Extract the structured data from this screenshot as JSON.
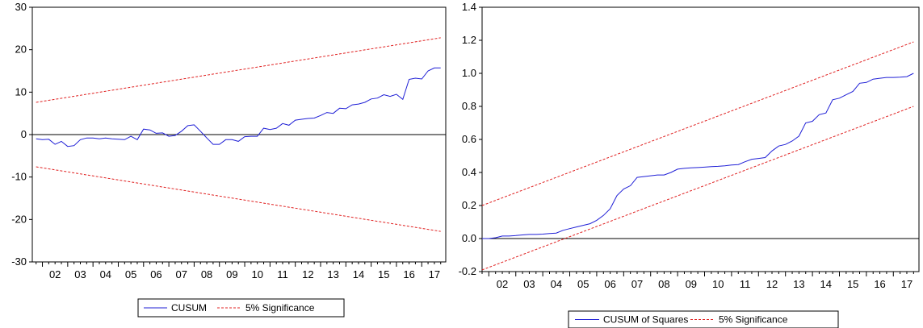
{
  "colors": {
    "series": "#1f1fd6",
    "bounds": "#e02020",
    "zero_line": "#000000",
    "background": "#ffffff"
  },
  "chart_data": [
    {
      "type": "line",
      "title": "",
      "xlabel": "",
      "ylabel": "",
      "ylim": [
        -30,
        30
      ],
      "yticks": [
        "30",
        "20",
        "10",
        "0",
        "-10",
        "-20",
        "-30"
      ],
      "xtick_labels": [
        "02",
        "03",
        "04",
        "05",
        "06",
        "07",
        "08",
        "09",
        "10",
        "11",
        "12",
        "13",
        "14",
        "15",
        "16",
        "17"
      ],
      "x_range": [
        2001.6,
        2017.95
      ],
      "grid": false,
      "legend_position": "bottom",
      "legend": [
        "CUSUM",
        "5% Significance"
      ],
      "series": [
        {
          "name": "CUSUM",
          "style": "solid",
          "x": [
            2001.75,
            2002.0,
            2002.25,
            2002.5,
            2002.75,
            2003.0,
            2003.25,
            2003.5,
            2003.75,
            2004.0,
            2004.25,
            2004.5,
            2004.75,
            2005.0,
            2005.25,
            2005.5,
            2005.75,
            2006.0,
            2006.25,
            2006.5,
            2006.75,
            2007.0,
            2007.25,
            2007.5,
            2007.75,
            2008.0,
            2008.25,
            2008.5,
            2008.75,
            2009.0,
            2009.25,
            2009.5,
            2009.75,
            2010.0,
            2010.25,
            2010.5,
            2010.75,
            2011.0,
            2011.25,
            2011.5,
            2011.75,
            2012.0,
            2012.25,
            2012.5,
            2012.75,
            2013.0,
            2013.25,
            2013.5,
            2013.75,
            2014.0,
            2014.25,
            2014.5,
            2014.75,
            2015.0,
            2015.25,
            2015.5,
            2015.75,
            2016.0,
            2016.25,
            2016.5,
            2016.75,
            2017.0,
            2017.25,
            2017.5,
            2017.75
          ],
          "y": [
            -1.0,
            -1.2,
            -1.1,
            -2.3,
            -1.6,
            -2.8,
            -2.6,
            -1.2,
            -0.8,
            -0.8,
            -1.0,
            -0.8,
            -1.0,
            -1.1,
            -1.2,
            -0.4,
            -1.2,
            1.3,
            1.1,
            0.3,
            0.4,
            -0.4,
            -0.2,
            0.8,
            2.1,
            2.3,
            0.8,
            -0.8,
            -2.3,
            -2.3,
            -1.2,
            -1.2,
            -1.6,
            -0.5,
            -0.4,
            -0.4,
            1.5,
            1.2,
            1.5,
            2.6,
            2.2,
            3.4,
            3.6,
            3.8,
            3.9,
            4.5,
            5.2,
            5.0,
            6.2,
            6.1,
            7.0,
            7.2,
            7.6,
            8.4,
            8.6,
            9.4,
            9.0,
            9.5,
            8.3,
            13.0,
            13.3,
            13.1,
            15.0,
            15.7,
            15.7
          ]
        },
        {
          "name": "5% Significance",
          "style": "dashed",
          "x": [
            2001.75,
            2017.75
          ],
          "y": [
            7.6,
            22.8
          ]
        },
        {
          "name": "5% Significance",
          "style": "dashed",
          "x": [
            2001.75,
            2017.75
          ],
          "y": [
            -7.6,
            -22.8
          ]
        }
      ]
    },
    {
      "type": "line",
      "title": "",
      "xlabel": "",
      "ylabel": "",
      "ylim": [
        -0.2,
        1.4
      ],
      "yticks": [
        "1.4",
        "1.2",
        "1.0",
        "0.8",
        "0.6",
        "0.4",
        "0.2",
        "0.0",
        "-0.2"
      ],
      "xtick_labels": [
        "02",
        "03",
        "04",
        "05",
        "06",
        "07",
        "08",
        "09",
        "10",
        "11",
        "12",
        "13",
        "14",
        "15",
        "16",
        "17"
      ],
      "x_range": [
        2001.75,
        2017.95
      ],
      "grid": false,
      "legend_position": "bottom",
      "legend": [
        "CUSUM of Squares",
        "5% Significance"
      ],
      "series": [
        {
          "name": "CUSUM of Squares",
          "style": "solid",
          "x": [
            2001.75,
            2002.0,
            2002.25,
            2002.5,
            2002.75,
            2003.0,
            2003.25,
            2003.5,
            2003.75,
            2004.0,
            2004.25,
            2004.5,
            2004.75,
            2005.0,
            2005.25,
            2005.5,
            2005.75,
            2006.0,
            2006.25,
            2006.5,
            2006.75,
            2007.0,
            2007.25,
            2007.5,
            2007.75,
            2008.0,
            2008.25,
            2008.5,
            2008.75,
            2009.0,
            2009.25,
            2009.5,
            2009.75,
            2010.0,
            2010.25,
            2010.5,
            2010.75,
            2011.0,
            2011.25,
            2011.5,
            2011.75,
            2012.0,
            2012.25,
            2012.5,
            2012.75,
            2013.0,
            2013.25,
            2013.5,
            2013.75,
            2014.0,
            2014.25,
            2014.5,
            2014.75,
            2015.0,
            2015.25,
            2015.5,
            2015.75,
            2016.0,
            2016.25,
            2016.5,
            2016.75,
            2017.0,
            2017.25,
            2017.5,
            2017.75
          ],
          "y": [
            0.0,
            0.0,
            0.005,
            0.015,
            0.015,
            0.018,
            0.022,
            0.025,
            0.025,
            0.027,
            0.03,
            0.033,
            0.05,
            0.06,
            0.07,
            0.08,
            0.09,
            0.11,
            0.14,
            0.18,
            0.26,
            0.3,
            0.32,
            0.37,
            0.375,
            0.38,
            0.385,
            0.385,
            0.4,
            0.42,
            0.425,
            0.428,
            0.43,
            0.432,
            0.435,
            0.437,
            0.44,
            0.445,
            0.448,
            0.465,
            0.48,
            0.485,
            0.49,
            0.53,
            0.56,
            0.57,
            0.59,
            0.62,
            0.7,
            0.71,
            0.75,
            0.76,
            0.84,
            0.85,
            0.87,
            0.89,
            0.94,
            0.945,
            0.965,
            0.97,
            0.975,
            0.975,
            0.977,
            0.98,
            1.0
          ]
        },
        {
          "name": "5% Significance",
          "style": "dashed",
          "x": [
            2001.75,
            2017.75
          ],
          "y": [
            0.2,
            1.19
          ]
        },
        {
          "name": "5% Significance",
          "style": "dashed",
          "x": [
            2001.75,
            2017.75
          ],
          "y": [
            -0.19,
            0.8
          ]
        }
      ]
    }
  ]
}
